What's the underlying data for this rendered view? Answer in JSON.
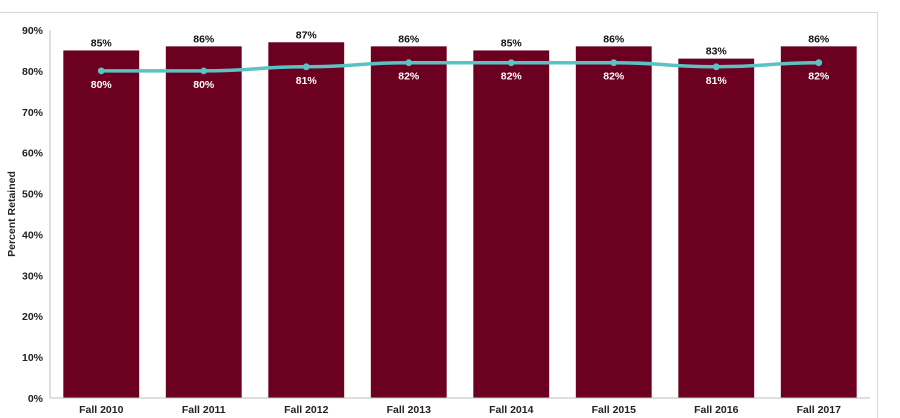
{
  "chart_data": {
    "type": "bar",
    "categories": [
      "Fall 2010",
      "Fall 2011",
      "Fall 2012",
      "Fall 2013",
      "Fall 2014",
      "Fall 2015",
      "Fall 2016",
      "Fall 2017"
    ],
    "series": [
      {
        "type": "bar",
        "values": [
          85,
          86,
          87,
          86,
          85,
          86,
          83,
          86
        ],
        "labels": [
          "85%",
          "86%",
          "87%",
          "86%",
          "85%",
          "86%",
          "83%",
          "86%"
        ],
        "color": "#6b0020"
      },
      {
        "type": "line",
        "values": [
          80,
          80,
          81,
          82,
          82,
          82,
          81,
          82
        ],
        "labels": [
          "80%",
          "80%",
          "81%",
          "82%",
          "82%",
          "82%",
          "81%",
          "82%"
        ],
        "color": "#5bc2c4"
      }
    ],
    "title": "",
    "xlabel": "",
    "ylabel": "Percent Retained",
    "ylim": [
      0,
      90
    ],
    "yticks": [
      "0%",
      "10%",
      "20%",
      "30%",
      "40%",
      "50%",
      "60%",
      "70%",
      "80%",
      "90%"
    ],
    "grid": false,
    "legend": "none"
  }
}
